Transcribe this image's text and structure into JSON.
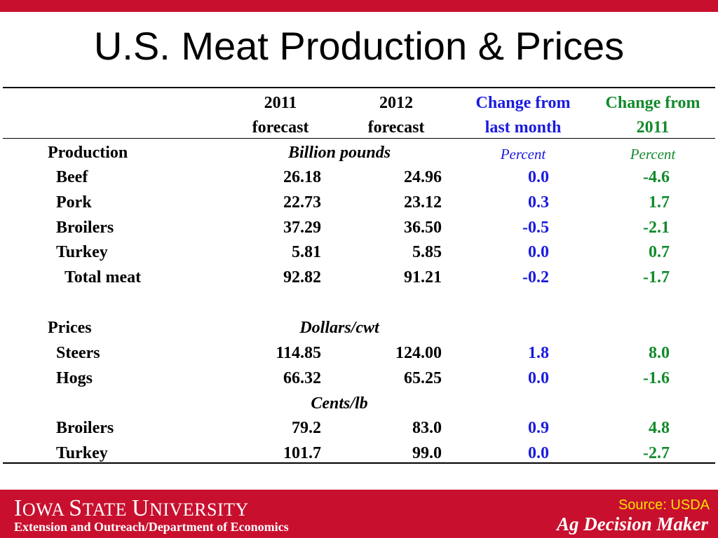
{
  "title": "U.S. Meat Production & Prices",
  "headers": {
    "col2011_l1": "2011",
    "col2011_l2": "forecast",
    "col2012_l1": "2012",
    "col2012_l2": "forecast",
    "chg_month_l1": "Change from",
    "chg_month_l2": "last month",
    "chg_year_l1": "Change from",
    "chg_year_l2": "2011"
  },
  "production": {
    "label": "Production",
    "unit": "Billion pounds",
    "pct1": "Percent",
    "pct2": "Percent",
    "rows": [
      {
        "name": "Beef",
        "y2011": "26.18",
        "y2012": "24.96",
        "chg_month": "0.0",
        "chg_year": "-4.6"
      },
      {
        "name": "Pork",
        "y2011": "22.73",
        "y2012": "23.12",
        "chg_month": "0.3",
        "chg_year": "1.7"
      },
      {
        "name": "Broilers",
        "y2011": "37.29",
        "y2012": "36.50",
        "chg_month": "-0.5",
        "chg_year": "-2.1"
      },
      {
        "name": "Turkey",
        "y2011": "5.81",
        "y2012": "5.85",
        "chg_month": "0.0",
        "chg_year": "0.7"
      },
      {
        "name": "Total meat",
        "y2011": "92.82",
        "y2012": "91.21",
        "chg_month": "-0.2",
        "chg_year": "-1.7"
      }
    ]
  },
  "prices": {
    "label": "Prices",
    "unit1": "Dollars/cwt",
    "unit2": "Cents/lb",
    "rows": [
      {
        "name": "Steers",
        "y2011": "114.85",
        "y2012": "124.00",
        "chg_month": "1.8",
        "chg_year": "8.0"
      },
      {
        "name": "Hogs",
        "y2011": "66.32",
        "y2012": "65.25",
        "chg_month": "0.0",
        "chg_year": "-1.6"
      },
      {
        "name": "Broilers",
        "y2011": "79.2",
        "y2012": "83.0",
        "chg_month": "0.9",
        "chg_year": "4.8"
      },
      {
        "name": "Turkey",
        "y2011": "101.7",
        "y2012": "99.0",
        "chg_month": "0.0",
        "chg_year": "-2.7"
      }
    ]
  },
  "footer": {
    "university_p1": "I",
    "university_p2": "OWA ",
    "university_p3": "S",
    "university_p4": "TATE ",
    "university_p5": "U",
    "university_p6": "NIVERSITY",
    "dept": "Extension and Outreach/Department of Economics",
    "source": "Source: USDA",
    "brand": "Ag Decision Maker"
  },
  "colors": {
    "accent_red": "#c8102e",
    "blue": "#1a1adf",
    "green": "#128a2c",
    "source_yellow": "#f5e400"
  }
}
